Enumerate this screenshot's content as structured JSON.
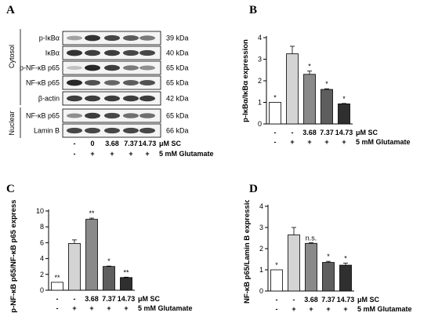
{
  "panel_letters": {
    "A": "A",
    "B": "B",
    "C": "C",
    "D": "D"
  },
  "blot": {
    "section_labels": {
      "cytosol": "Cytosol",
      "nuclear": "Nuclear"
    },
    "proteins": [
      {
        "label": "p-IκBα",
        "kda": "39 kDa"
      },
      {
        "label": "IκBα",
        "kda": "40 kDa"
      },
      {
        "label": "p-NF-κB p65",
        "kda": "65 kDa"
      },
      {
        "label": "NF-κB p65",
        "kda": "65 kDa"
      },
      {
        "label": "β-actin",
        "kda": "42 kDa"
      },
      {
        "label": "NF-κB p65",
        "kda": "65 kDa"
      },
      {
        "label": "Lamin B",
        "kda": "66 kDa"
      }
    ],
    "sc_values": [
      "-",
      "0",
      "3.68",
      "7.37",
      "14.73"
    ],
    "sc_unit": "μM SC",
    "glu_values": [
      "-",
      "+",
      "+",
      "+",
      "+"
    ],
    "glu_label": "5 mM Glutamate",
    "band_intensity": [
      [
        0.35,
        0.9,
        0.8,
        0.7,
        0.55
      ],
      [
        0.9,
        0.85,
        0.85,
        0.8,
        0.8
      ],
      [
        0.2,
        0.95,
        0.85,
        0.55,
        0.45
      ],
      [
        0.95,
        0.75,
        0.65,
        0.7,
        0.75
      ],
      [
        0.85,
        0.85,
        0.85,
        0.85,
        0.85
      ],
      [
        0.45,
        0.85,
        0.8,
        0.6,
        0.6
      ],
      [
        0.8,
        0.8,
        0.8,
        0.8,
        0.8
      ]
    ]
  },
  "chart_data": [
    {
      "panel": "B",
      "type": "bar",
      "ylabel": "p-IκBα/IκBα expression",
      "ylim": [
        0,
        4
      ],
      "yticks": [
        "0",
        "1",
        "2",
        "3",
        "4"
      ],
      "sc_row": [
        "-",
        "-",
        "3.68",
        "7.37",
        "14.73"
      ],
      "sc_unit": "μM SC",
      "glu_row": [
        "-",
        "+",
        "+",
        "+",
        "+"
      ],
      "glu_label": "5 mM Glutamate",
      "values": [
        1.0,
        3.25,
        2.3,
        1.6,
        0.93
      ],
      "errors": [
        0.0,
        0.35,
        0.15,
        0.03,
        0.02
      ],
      "significance": [
        "*",
        "",
        "*",
        "*",
        "*"
      ],
      "colors": [
        "#ffffff",
        "#d4d4d4",
        "#8a8a8a",
        "#5e5e5e",
        "#2f2f2f"
      ]
    },
    {
      "panel": "C",
      "type": "bar",
      "ylabel": "p-NF-κB p65/NF-κB p65 expression",
      "ylim": [
        0,
        10
      ],
      "yticks": [
        "0",
        "2",
        "4",
        "6",
        "8",
        "10"
      ],
      "sc_row": [
        "-",
        "-",
        "3.68",
        "7.37",
        "14.73"
      ],
      "sc_unit": "μM SC",
      "glu_row": [
        "-",
        "+",
        "+",
        "+",
        "+"
      ],
      "glu_label": "5 mM Glutamate",
      "values": [
        1.0,
        5.9,
        8.95,
        3.0,
        1.6
      ],
      "errors": [
        0.0,
        0.45,
        0.15,
        0.05,
        0.05
      ],
      "significance": [
        "**",
        "",
        "**",
        "*",
        "**"
      ],
      "colors": [
        "#ffffff",
        "#d4d4d4",
        "#8a8a8a",
        "#5e5e5e",
        "#2f2f2f"
      ]
    },
    {
      "panel": "D",
      "type": "bar",
      "ylabel": "NF-κB p65/Lamin B expression",
      "ylim": [
        0,
        4
      ],
      "yticks": [
        "0",
        "1",
        "2",
        "3",
        "4"
      ],
      "sc_row": [
        "-",
        "-",
        "3.68",
        "7.37",
        "14.73"
      ],
      "sc_unit": "μM SC",
      "glu_row": [
        "-",
        "+",
        "+",
        "+",
        "+"
      ],
      "glu_label": "5 mM Glutamate",
      "values": [
        1.0,
        2.65,
        2.25,
        1.35,
        1.22
      ],
      "errors": [
        0.0,
        0.35,
        0.03,
        0.05,
        0.1
      ],
      "significance": [
        "*",
        "",
        "n.s.",
        "*",
        "*"
      ],
      "colors": [
        "#ffffff",
        "#d4d4d4",
        "#8a8a8a",
        "#5e5e5e",
        "#2f2f2f"
      ]
    }
  ]
}
